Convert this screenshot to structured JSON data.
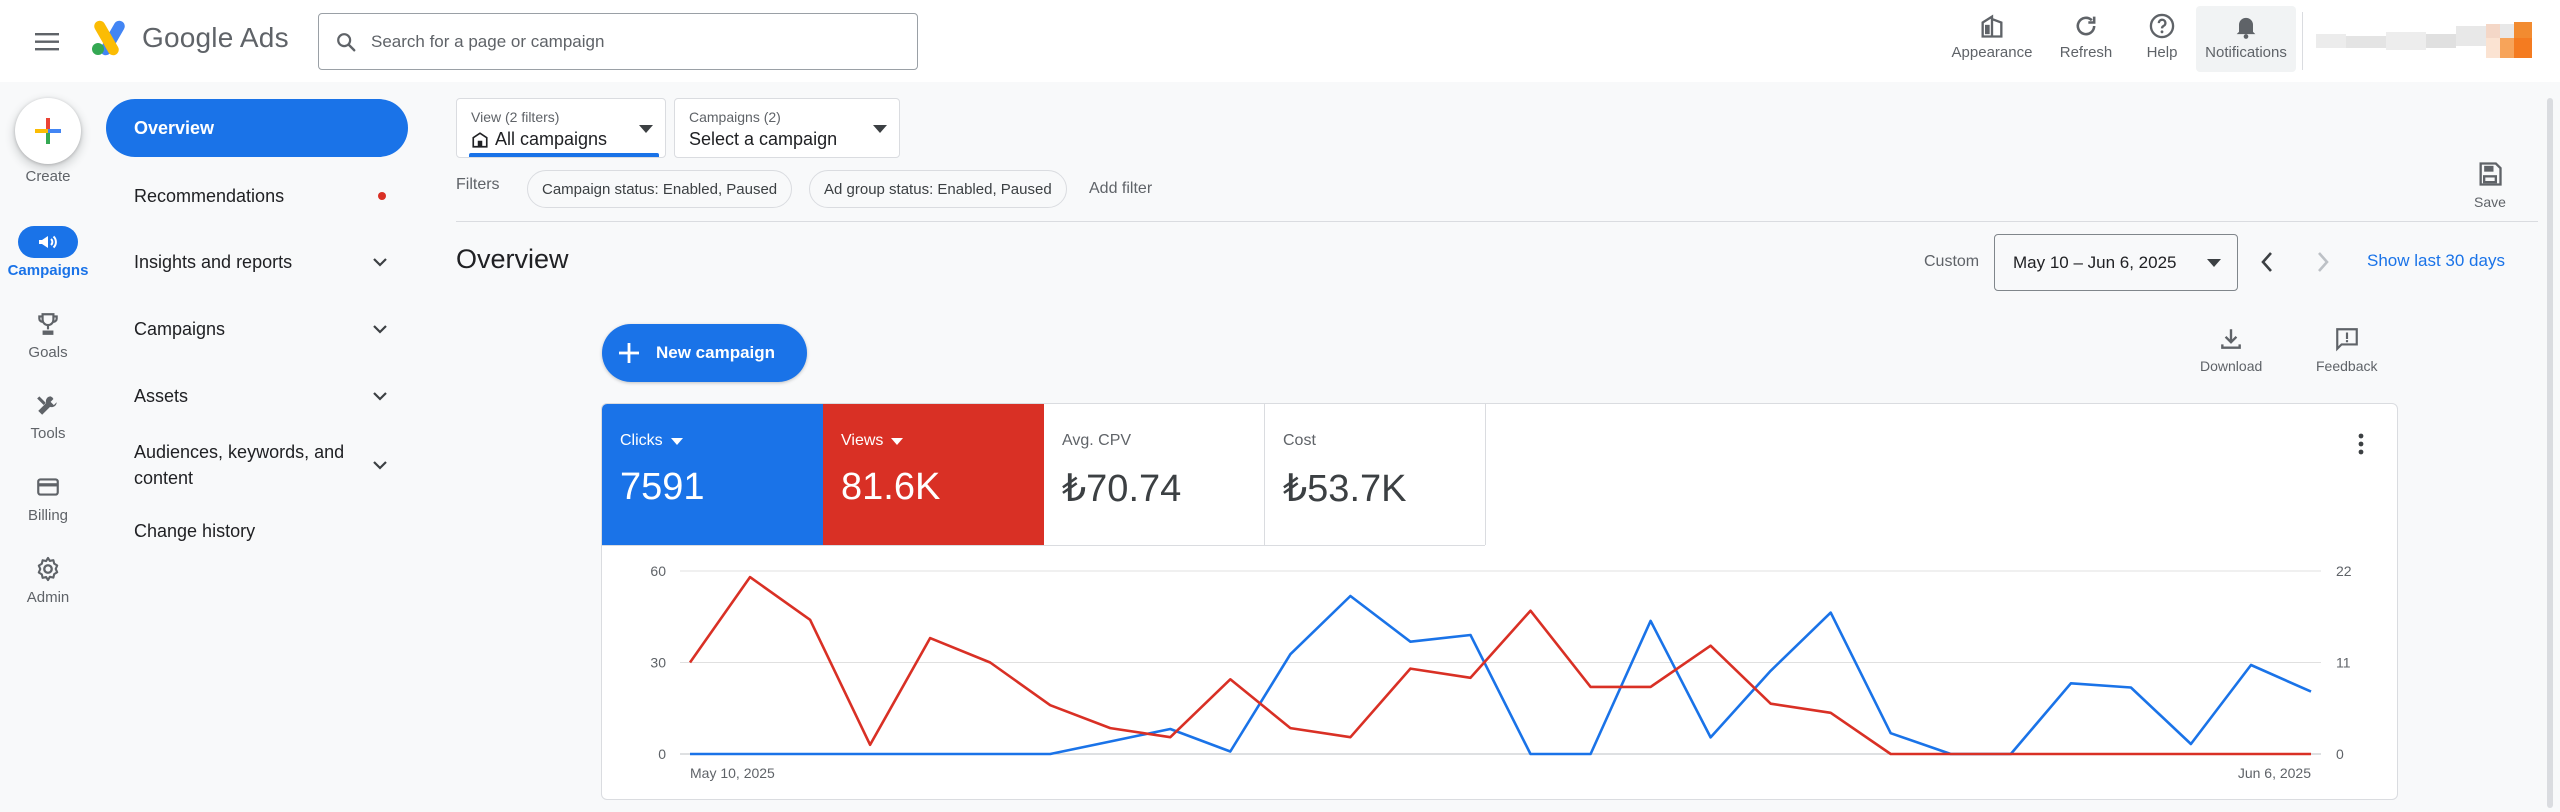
{
  "header": {
    "app_name": "Google Ads",
    "search_placeholder": "Search for a page or campaign",
    "actions": [
      {
        "label": "Appearance",
        "icon": "appearance-icon"
      },
      {
        "label": "Refresh",
        "icon": "refresh-icon"
      },
      {
        "label": "Help",
        "icon": "help-icon"
      },
      {
        "label": "Notifications",
        "icon": "bell-icon"
      }
    ]
  },
  "rail": {
    "create": "Create",
    "items": [
      {
        "label": "Campaigns",
        "icon": "campaigns-icon",
        "active": true
      },
      {
        "label": "Goals",
        "icon": "trophy-icon"
      },
      {
        "label": "Tools",
        "icon": "tools-icon"
      },
      {
        "label": "Billing",
        "icon": "credit-card-icon"
      },
      {
        "label": "Admin",
        "icon": "gear-icon"
      }
    ]
  },
  "nav": {
    "items": [
      {
        "label": "Overview",
        "active": true
      },
      {
        "label": "Recommendations",
        "badge": "red-dot"
      },
      {
        "label": "Insights and reports",
        "expandable": true
      },
      {
        "label": "Campaigns",
        "expandable": true
      },
      {
        "label": "Assets",
        "expandable": true
      },
      {
        "label": "Audiences, keywords, and content",
        "expandable": true
      },
      {
        "label": "Change history"
      }
    ]
  },
  "selectors": {
    "view": {
      "sub": "View (2 filters)",
      "value": "All campaigns"
    },
    "campaigns": {
      "sub": "Campaigns (2)",
      "value": "Select a campaign"
    }
  },
  "filters": {
    "label": "Filters",
    "chips": [
      "Campaign status: Enabled, Paused",
      "Ad group status: Enabled, Paused"
    ],
    "add": "Add filter"
  },
  "save_label": "Save",
  "page_title": "Overview",
  "date": {
    "custom": "Custom",
    "range": "May 10 – Jun 6, 2025",
    "show_last": "Show last 30 days"
  },
  "new_campaign": "New campaign",
  "tools": {
    "download": "Download",
    "feedback": "Feedback"
  },
  "metrics": [
    {
      "label": "Clicks",
      "value": "7591",
      "style": "blue",
      "dropdown": true
    },
    {
      "label": "Views",
      "value": "81.6K",
      "style": "red",
      "dropdown": true
    },
    {
      "label": "Avg. CPV",
      "value": "₺70.74",
      "style": "plain"
    },
    {
      "label": "Cost",
      "value": "₺53.7K",
      "style": "plain"
    }
  ],
  "colors": {
    "blue": "#1a73e8",
    "red": "#d93025",
    "accent": "#1a73e8"
  },
  "chart_data": {
    "type": "line",
    "x_start_label": "May 10, 2025",
    "x_end_label": "Jun 6, 2025",
    "left_axis": {
      "ticks": [
        "60",
        "30",
        "0"
      ],
      "ylim": [
        0,
        60
      ]
    },
    "right_axis": {
      "ticks": [
        "22",
        "11",
        "0"
      ],
      "ylim": [
        0,
        22
      ]
    },
    "grid": true,
    "series": [
      {
        "name": "Clicks",
        "axis": "right",
        "color": "#1a73e8",
        "values": [
          0,
          0,
          0,
          0,
          0,
          0,
          0,
          1.5,
          3,
          0.3,
          12,
          19,
          13.5,
          14.3,
          0,
          0,
          16,
          2,
          10,
          17,
          2.5,
          0,
          0,
          8.5,
          8,
          1.2,
          10.7,
          7.5
        ]
      },
      {
        "name": "Views",
        "axis": "left",
        "color": "#d93025",
        "values": [
          30,
          58,
          44,
          3,
          38,
          30,
          16,
          8.5,
          5.5,
          24.5,
          8.5,
          5.5,
          28,
          25,
          47,
          22,
          22,
          35.5,
          16.5,
          13.5,
          0,
          0,
          0,
          0,
          0,
          0,
          0,
          0
        ]
      }
    ]
  }
}
